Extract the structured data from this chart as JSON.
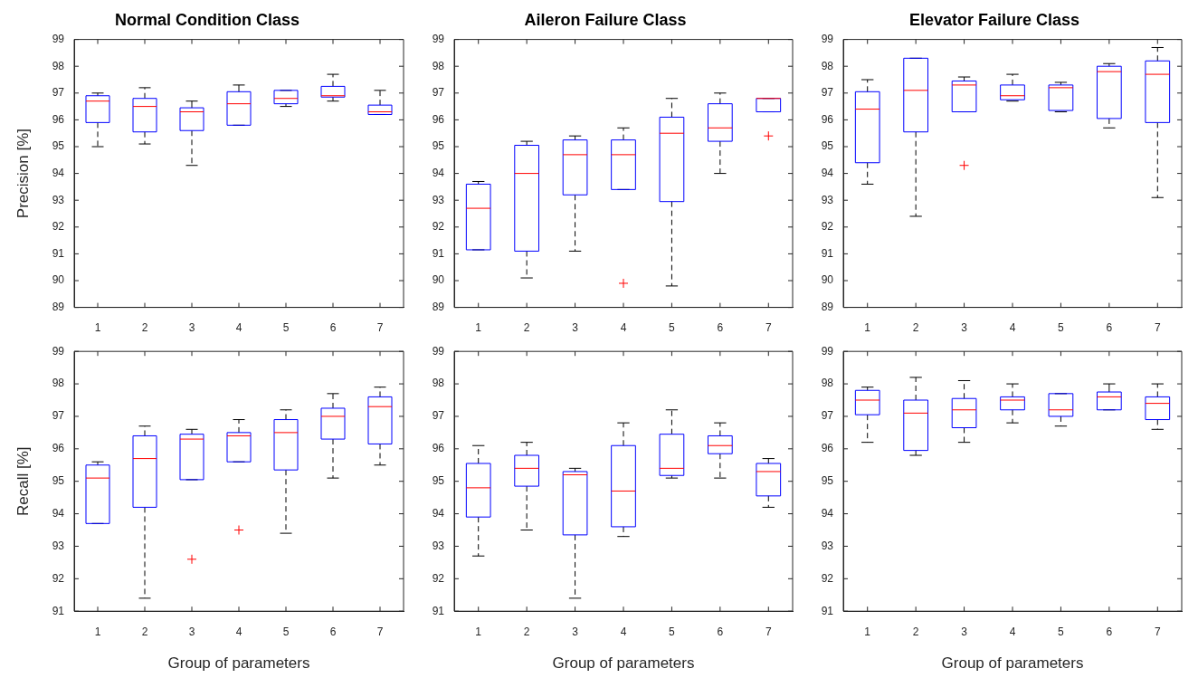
{
  "chart_data": [
    {
      "type": "box",
      "title": "Normal Condition Class",
      "ylabel": "Precision [%]",
      "categories": [
        "1",
        "2",
        "3",
        "4",
        "5",
        "6",
        "7"
      ],
      "color": "#0000ff",
      "ylim": [
        89,
        99
      ],
      "yticks": [
        89,
        90,
        91,
        92,
        93,
        94,
        95,
        96,
        97,
        98,
        99
      ],
      "boxes": [
        {
          "low": 95.0,
          "q1": 95.9,
          "median": 96.7,
          "q3": 96.9,
          "high": 97.0
        },
        {
          "low": 95.1,
          "q1": 95.55,
          "median": 96.5,
          "q3": 96.8,
          "high": 97.2
        },
        {
          "low": 94.3,
          "q1": 95.6,
          "median": 96.3,
          "q3": 96.45,
          "high": 96.7
        },
        {
          "low": 95.8,
          "q1": 95.8,
          "median": 96.6,
          "q3": 97.05,
          "high": 97.3
        },
        {
          "low": 96.5,
          "q1": 96.6,
          "median": 96.8,
          "q3": 97.1,
          "high": 97.1
        },
        {
          "low": 96.7,
          "q1": 96.85,
          "median": 96.9,
          "q3": 97.25,
          "high": 97.7
        },
        {
          "low": 96.2,
          "q1": 96.2,
          "median": 96.3,
          "q3": 96.55,
          "high": 97.1
        }
      ]
    },
    {
      "type": "box",
      "title": "Aileron Failure Class",
      "categories": [
        "1",
        "2",
        "3",
        "4",
        "5",
        "6",
        "7"
      ],
      "color": "#0000ff",
      "ylim": [
        89,
        99
      ],
      "yticks": [
        89,
        90,
        91,
        92,
        93,
        94,
        95,
        96,
        97,
        98,
        99
      ],
      "boxes": [
        {
          "low": 91.15,
          "q1": 91.15,
          "median": 92.7,
          "q3": 93.6,
          "high": 93.7
        },
        {
          "low": 90.1,
          "q1": 91.1,
          "median": 94.0,
          "q3": 95.05,
          "high": 95.2
        },
        {
          "low": 91.1,
          "q1": 93.2,
          "median": 94.7,
          "q3": 95.25,
          "high": 95.4
        },
        {
          "low": 93.4,
          "q1": 93.4,
          "median": 94.7,
          "q3": 95.25,
          "high": 95.7,
          "outliers": [
            89.9
          ]
        },
        {
          "low": 89.8,
          "q1": 92.95,
          "median": 95.5,
          "q3": 96.1,
          "high": 96.8
        },
        {
          "low": 94.0,
          "q1": 95.2,
          "median": 95.7,
          "q3": 96.6,
          "high": 97.0
        },
        {
          "low": 96.3,
          "q1": 96.3,
          "median": 96.8,
          "q3": 96.8,
          "high": 96.8,
          "outliers": [
            95.4
          ]
        }
      ]
    },
    {
      "type": "box",
      "title": "Elevator Failure Class",
      "categories": [
        "1",
        "2",
        "3",
        "4",
        "5",
        "6",
        "7"
      ],
      "color": "#0000ff",
      "ylim": [
        89,
        99
      ],
      "yticks": [
        89,
        90,
        91,
        92,
        93,
        94,
        95,
        96,
        97,
        98,
        99
      ],
      "boxes": [
        {
          "low": 93.6,
          "q1": 94.4,
          "median": 96.4,
          "q3": 97.05,
          "high": 97.5
        },
        {
          "low": 92.4,
          "q1": 95.55,
          "median": 97.1,
          "q3": 98.3,
          "high": 98.3
        },
        {
          "low": 96.3,
          "q1": 96.3,
          "median": 97.3,
          "q3": 97.45,
          "high": 97.6,
          "outliers": [
            94.3
          ]
        },
        {
          "low": 96.7,
          "q1": 96.75,
          "median": 96.9,
          "q3": 97.3,
          "high": 97.7
        },
        {
          "low": 96.3,
          "q1": 96.35,
          "median": 97.2,
          "q3": 97.3,
          "high": 97.4
        },
        {
          "low": 95.7,
          "q1": 96.05,
          "median": 97.8,
          "q3": 98.0,
          "high": 98.1
        },
        {
          "low": 93.1,
          "q1": 95.9,
          "median": 97.7,
          "q3": 98.2,
          "high": 98.7
        }
      ]
    },
    {
      "type": "box",
      "xlabel": "Group of parameters",
      "ylabel": "Recall [%]",
      "categories": [
        "1",
        "2",
        "3",
        "4",
        "5",
        "6",
        "7"
      ],
      "color": "#0000ff",
      "ylim": [
        91,
        99
      ],
      "yticks": [
        91,
        92,
        93,
        94,
        95,
        96,
        97,
        98,
        99
      ],
      "boxes": [
        {
          "low": 93.7,
          "q1": 93.7,
          "median": 95.1,
          "q3": 95.5,
          "high": 95.6
        },
        {
          "low": 91.4,
          "q1": 94.2,
          "median": 95.7,
          "q3": 96.4,
          "high": 96.7
        },
        {
          "low": 95.05,
          "q1": 95.05,
          "median": 96.3,
          "q3": 96.45,
          "high": 96.6,
          "outliers": [
            92.6
          ]
        },
        {
          "low": 95.6,
          "q1": 95.6,
          "median": 96.4,
          "q3": 96.5,
          "high": 96.9,
          "outliers": [
            93.5
          ]
        },
        {
          "low": 93.4,
          "q1": 95.35,
          "median": 96.5,
          "q3": 96.9,
          "high": 97.2
        },
        {
          "low": 95.1,
          "q1": 96.3,
          "median": 97.0,
          "q3": 97.25,
          "high": 97.7
        },
        {
          "low": 95.5,
          "q1": 96.15,
          "median": 97.3,
          "q3": 97.6,
          "high": 97.9
        }
      ]
    },
    {
      "type": "box",
      "xlabel": "Group of parameters",
      "categories": [
        "1",
        "2",
        "3",
        "4",
        "5",
        "6",
        "7"
      ],
      "color": "#0000ff",
      "ylim": [
        91,
        99
      ],
      "yticks": [
        91,
        92,
        93,
        94,
        95,
        96,
        97,
        98,
        99
      ],
      "boxes": [
        {
          "low": 92.7,
          "q1": 93.9,
          "median": 94.8,
          "q3": 95.55,
          "high": 96.1
        },
        {
          "low": 93.5,
          "q1": 94.85,
          "median": 95.4,
          "q3": 95.8,
          "high": 96.2
        },
        {
          "low": 91.4,
          "q1": 93.35,
          "median": 95.2,
          "q3": 95.3,
          "high": 95.4
        },
        {
          "low": 93.3,
          "q1": 93.6,
          "median": 94.7,
          "q3": 96.1,
          "high": 96.8
        },
        {
          "low": 95.1,
          "q1": 95.18,
          "median": 95.4,
          "q3": 96.45,
          "high": 97.2
        },
        {
          "low": 95.1,
          "q1": 95.85,
          "median": 96.1,
          "q3": 96.4,
          "high": 96.8
        },
        {
          "low": 94.2,
          "q1": 94.55,
          "median": 95.3,
          "q3": 95.55,
          "high": 95.7
        }
      ]
    },
    {
      "type": "box",
      "xlabel": "Group of parameters",
      "categories": [
        "1",
        "2",
        "3",
        "4",
        "5",
        "6",
        "7"
      ],
      "color": "#0000ff",
      "ylim": [
        91,
        99
      ],
      "yticks": [
        91,
        92,
        93,
        94,
        95,
        96,
        97,
        98,
        99
      ],
      "boxes": [
        {
          "low": 96.2,
          "q1": 97.05,
          "median": 97.5,
          "q3": 97.8,
          "high": 97.9
        },
        {
          "low": 95.8,
          "q1": 95.95,
          "median": 97.1,
          "q3": 97.5,
          "high": 98.2
        },
        {
          "low": 96.2,
          "q1": 96.65,
          "median": 97.2,
          "q3": 97.55,
          "high": 98.1
        },
        {
          "low": 96.8,
          "q1": 97.2,
          "median": 97.5,
          "q3": 97.6,
          "high": 98.0
        },
        {
          "low": 96.7,
          "q1": 97.0,
          "median": 97.2,
          "q3": 97.7,
          "high": 97.7
        },
        {
          "low": 97.2,
          "q1": 97.2,
          "median": 97.6,
          "q3": 97.75,
          "high": 98.0
        },
        {
          "low": 96.6,
          "q1": 96.9,
          "median": 97.4,
          "q3": 97.6,
          "high": 98.0
        }
      ]
    }
  ]
}
